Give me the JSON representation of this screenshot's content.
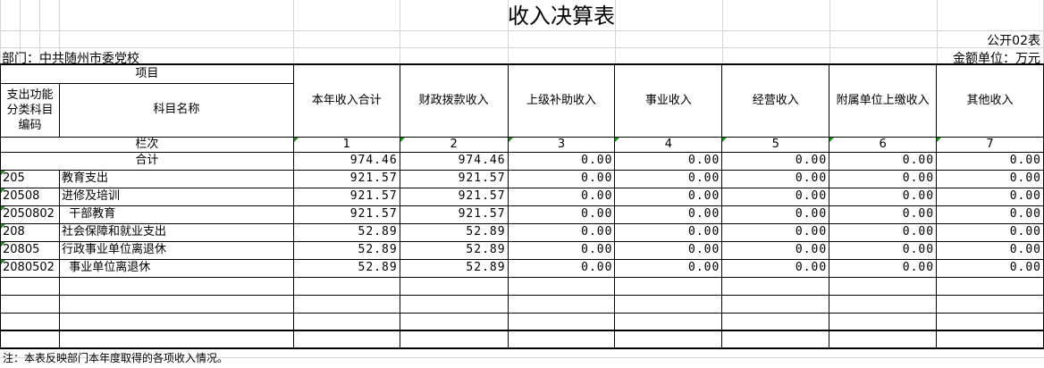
{
  "title": "收入决算表",
  "form_no": "公开02表",
  "department": "部门：中共随州市委党校",
  "unit": "金额单位：万元",
  "headers": {
    "item": "项目",
    "code": "支出功能分类科目编码",
    "name": "科目名称",
    "columns": [
      "本年收入合计",
      "财政拨款收入",
      "上级补助收入",
      "事业收入",
      "经营收入",
      "附属单位上缴收入",
      "其他收入"
    ],
    "row_label": "栏次",
    "col_numbers": [
      "1",
      "2",
      "3",
      "4",
      "5",
      "6",
      "7"
    ]
  },
  "total": {
    "label": "合计",
    "values": [
      "974.46",
      "974.46",
      "0.00",
      "0.00",
      "0.00",
      "0.00",
      "0.00"
    ]
  },
  "rows": [
    {
      "code": "205",
      "name": "教育支出",
      "values": [
        "921.57",
        "921.57",
        "0.00",
        "0.00",
        "0.00",
        "0.00",
        "0.00"
      ]
    },
    {
      "code": "20508",
      "name": "进修及培训",
      "values": [
        "921.57",
        "921.57",
        "0.00",
        "0.00",
        "0.00",
        "0.00",
        "0.00"
      ]
    },
    {
      "code": "2050802",
      "name": "  干部教育",
      "values": [
        "921.57",
        "921.57",
        "0.00",
        "0.00",
        "0.00",
        "0.00",
        "0.00"
      ]
    },
    {
      "code": "208",
      "name": "社会保障和就业支出",
      "values": [
        "52.89",
        "52.89",
        "0.00",
        "0.00",
        "0.00",
        "0.00",
        "0.00"
      ]
    },
    {
      "code": "20805",
      "name": "行政事业单位离退休",
      "values": [
        "52.89",
        "52.89",
        "0.00",
        "0.00",
        "0.00",
        "0.00",
        "0.00"
      ]
    },
    {
      "code": "2080502",
      "name": "  事业单位离退休",
      "values": [
        "52.89",
        "52.89",
        "0.00",
        "0.00",
        "0.00",
        "0.00",
        "0.00"
      ]
    }
  ],
  "note": "注：本表反映部门本年度取得的各项收入情况。"
}
